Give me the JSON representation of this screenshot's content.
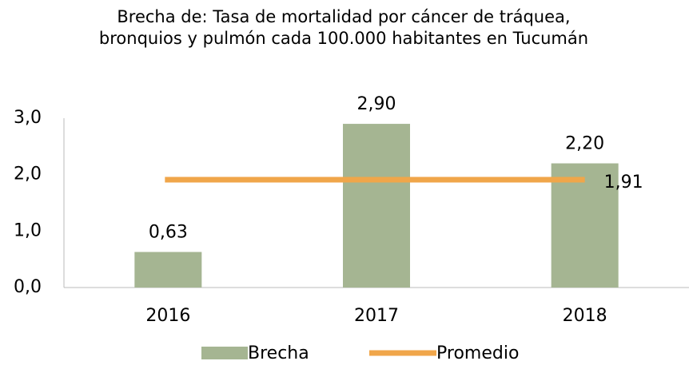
{
  "chart_data": {
    "type": "bar",
    "title": "Brecha de: Tasa de mortalidad por cáncer de tráquea, bronquios y pulmón cada 100.000 habitantes en Tucumán",
    "categories": [
      "2016",
      "2017",
      "2018"
    ],
    "series": [
      {
        "name": "Brecha",
        "type": "bar",
        "color": "#a5b592",
        "values": [
          0.63,
          2.9,
          2.2
        ],
        "value_labels": [
          "0,63",
          "2,90",
          "2,20"
        ]
      },
      {
        "name": "Promedio",
        "type": "line",
        "color": "#f0a64a",
        "values": [
          1.91,
          1.91,
          1.91
        ],
        "value_labels": [
          null,
          null,
          "1,91"
        ]
      }
    ],
    "ylim": [
      0,
      3
    ],
    "yticks": [
      {
        "value": 0,
        "label": "0,0"
      },
      {
        "value": 1,
        "label": "1,0"
      },
      {
        "value": 2,
        "label": "2,0"
      },
      {
        "value": 3,
        "label": "3,0"
      }
    ],
    "grid": false,
    "legend": "bottom"
  }
}
